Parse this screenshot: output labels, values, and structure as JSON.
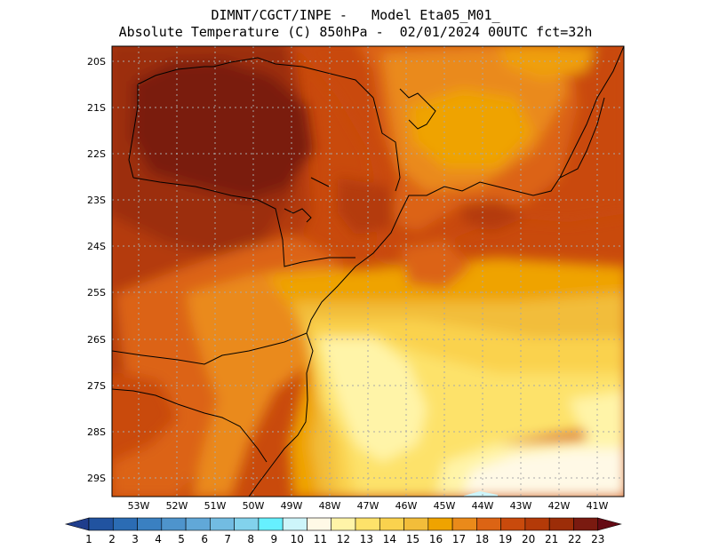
{
  "title": {
    "line1": "DIMNT/CGCT/INPE -   Model Eta05_M01_",
    "line2": "Absolute Temperature (C) 850hPa -  02/01/2024 00UTC fct=32h"
  },
  "map": {
    "lat_labels": [
      "20S",
      "21S",
      "22S",
      "23S",
      "24S",
      "25S",
      "26S",
      "27S",
      "28S",
      "29S"
    ],
    "lon_labels": [
      "53W",
      "52W",
      "51W",
      "50W",
      "49W",
      "48W",
      "47W",
      "46W",
      "45W",
      "44W",
      "43W",
      "42W",
      "41W"
    ],
    "lat_range": [
      -29.4,
      -19.75
    ],
    "lon_range": [
      -53.7,
      -40.35
    ]
  },
  "colorbar": {
    "labels": [
      "1",
      "2",
      "3",
      "4",
      "5",
      "6",
      "7",
      "8",
      "9",
      "10",
      "11",
      "12",
      "13",
      "14",
      "15",
      "16",
      "17",
      "18",
      "19",
      "20",
      "21",
      "22",
      "23"
    ],
    "colors": [
      "#1f3d8c",
      "#2153a0",
      "#2b6cb4",
      "#3a80c1",
      "#4e94cc",
      "#61a8d8",
      "#72bce2",
      "#82d2ec",
      "#66f0ff",
      "#cdf5fa",
      "#fff9e6",
      "#fff4a8",
      "#fde26a",
      "#fad24e",
      "#f2bd3a",
      "#efa300",
      "#ea8a1a",
      "#dc6414",
      "#c94a0c",
      "#b43a08",
      "#9c2d08",
      "#7a1a10",
      "#650a14"
    ]
  }
}
